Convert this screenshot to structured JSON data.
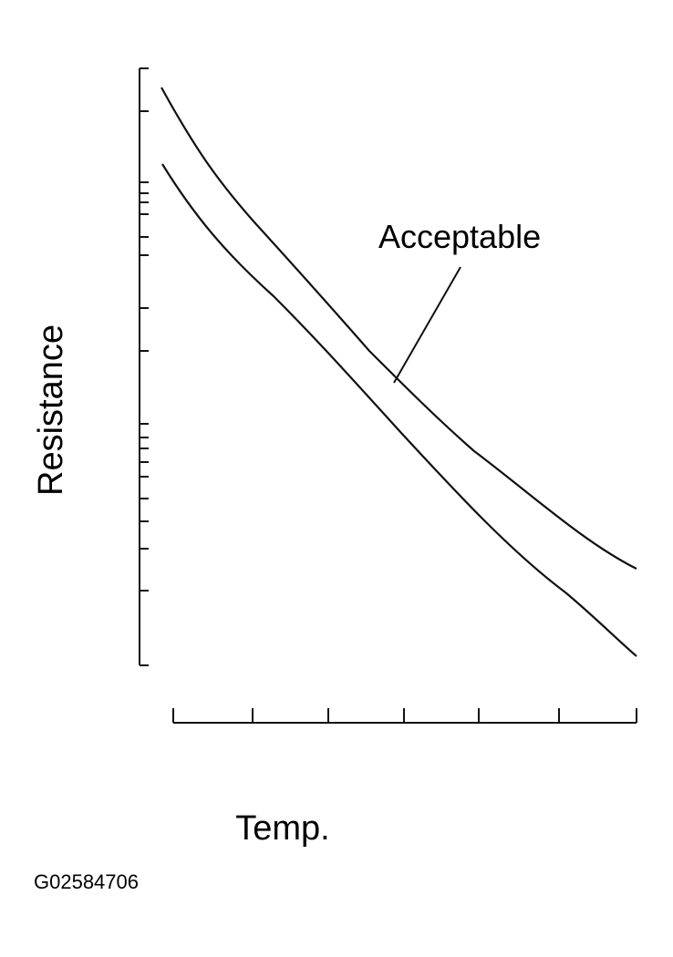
{
  "labels": {
    "annotation": "Acceptable",
    "y_axis": "Resistance",
    "x_axis": "Temp."
  },
  "figure_id": "G02584706"
}
